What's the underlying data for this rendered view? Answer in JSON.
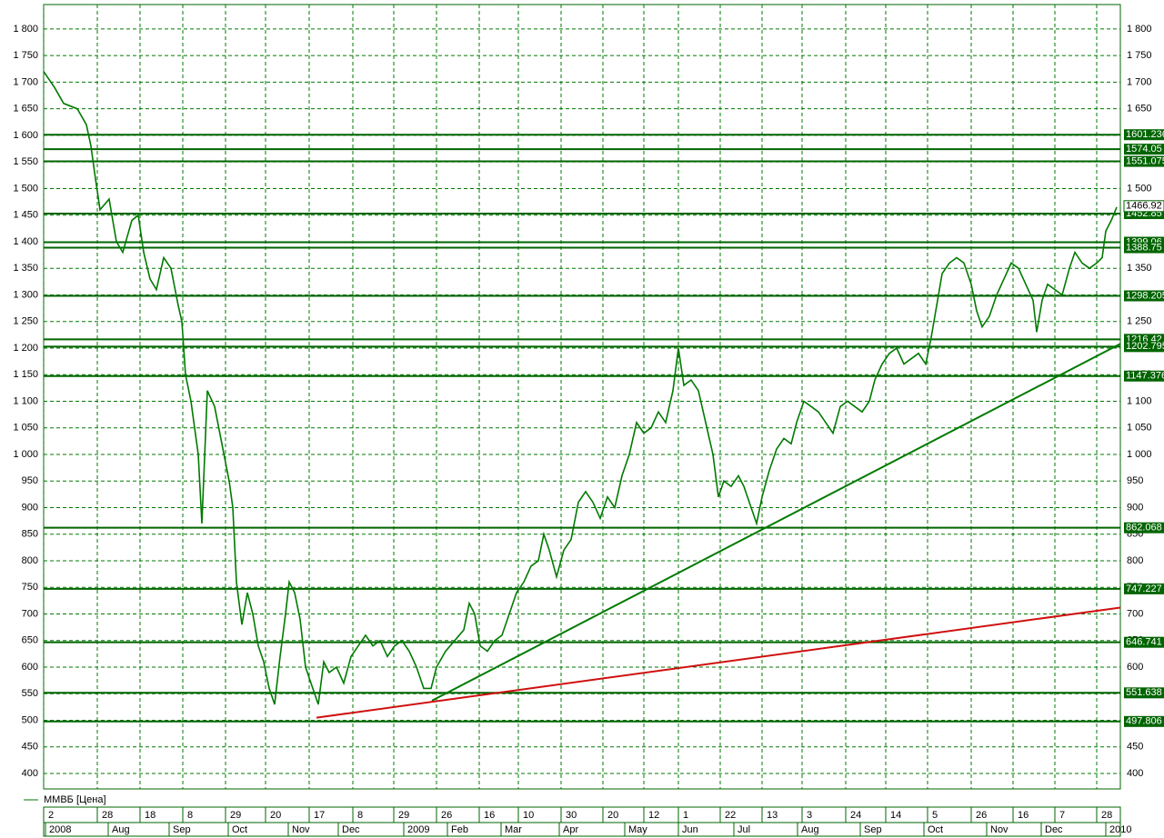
{
  "chart_data": {
    "type": "line",
    "legend": "ММВБ [Цена]",
    "grid": true,
    "xlim": [
      0,
      1184
    ],
    "ylim": [
      371,
      1846
    ],
    "yticks": [
      400,
      450,
      500,
      550,
      600,
      650,
      700,
      750,
      800,
      850,
      900,
      950,
      {
        "value": 1000,
        "label": "1 000"
      },
      {
        "value": 1050,
        "label": "1 050"
      },
      {
        "value": 1100,
        "label": "1 100"
      },
      {
        "value": 1150,
        "label": "1 150"
      },
      {
        "value": 1200,
        "label": "1 200"
      },
      {
        "value": 1250,
        "label": "1 250"
      },
      {
        "value": 1300,
        "label": "1 300"
      },
      {
        "value": 1350,
        "label": "1 350"
      },
      {
        "value": 1400,
        "label": "1 400"
      },
      {
        "value": 1450,
        "label": "1 450"
      },
      {
        "value": 1500,
        "label": "1 500"
      },
      {
        "value": 1550,
        "label": "1 550"
      },
      {
        "value": 1600,
        "label": "1 600"
      },
      {
        "value": 1650,
        "label": "1 650"
      },
      {
        "value": 1700,
        "label": "1 700"
      },
      {
        "value": 1750,
        "label": "1 750"
      },
      {
        "value": 1800,
        "label": "1 800"
      }
    ],
    "xticks": [
      {
        "value": 0,
        "label": "2"
      },
      {
        "value": 59,
        "label": "28"
      },
      {
        "value": 106,
        "label": "18"
      },
      {
        "value": 153,
        "label": "8"
      },
      {
        "value": 200,
        "label": "29"
      },
      {
        "value": 244,
        "label": "20"
      },
      {
        "value": 292,
        "label": "17"
      },
      {
        "value": 340,
        "label": "8"
      },
      {
        "value": 385,
        "label": "29"
      },
      {
        "value": 432,
        "label": "26"
      },
      {
        "value": 479,
        "label": "16"
      },
      {
        "value": 522,
        "label": "10"
      },
      {
        "value": 569,
        "label": "30"
      },
      {
        "value": 615,
        "label": "20"
      },
      {
        "value": 660,
        "label": "12"
      },
      {
        "value": 698,
        "label": "1"
      },
      {
        "value": 744,
        "label": "22"
      },
      {
        "value": 790,
        "label": "13"
      },
      {
        "value": 834,
        "label": "3"
      },
      {
        "value": 882,
        "label": "24"
      },
      {
        "value": 926,
        "label": "14"
      },
      {
        "value": 972,
        "label": "5"
      },
      {
        "value": 1020,
        "label": "26"
      },
      {
        "value": 1066,
        "label": "16"
      },
      {
        "value": 1112,
        "label": "7"
      },
      {
        "value": 1158,
        "label": "28"
      }
    ],
    "months": [
      {
        "value": 0,
        "label": "2008"
      },
      {
        "value": 69,
        "label": "Aug"
      },
      {
        "value": 136,
        "label": "Sep"
      },
      {
        "value": 201,
        "label": "Oct"
      },
      {
        "value": 267,
        "label": "Nov"
      },
      {
        "value": 322,
        "label": "Dec"
      },
      {
        "value": 394,
        "label": "2009"
      },
      {
        "value": 442,
        "label": "Feb"
      },
      {
        "value": 501,
        "label": "Mar"
      },
      {
        "value": 565,
        "label": "Apr"
      },
      {
        "value": 637,
        "label": "May"
      },
      {
        "value": 696,
        "label": "Jun"
      },
      {
        "value": 757,
        "label": "Jul"
      },
      {
        "value": 827,
        "label": "Aug"
      },
      {
        "value": 896,
        "label": "Sep"
      },
      {
        "value": 966,
        "label": "Oct"
      },
      {
        "value": 1035,
        "label": "Nov"
      },
      {
        "value": 1095,
        "label": "Dec"
      },
      {
        "value": 1166,
        "label": "2010"
      }
    ],
    "series": [
      {
        "name": "ММВБ [Цена]",
        "color": "#007a00",
        "x": [
          0,
          12,
          22,
          37,
          47,
          52,
          56,
          62,
          72,
          80,
          87,
          97,
          104,
          110,
          117,
          124,
          132,
          140,
          148,
          152,
          156,
          162,
          170,
          174,
          180,
          188,
          196,
          204,
          208,
          212,
          218,
          224,
          230,
          236,
          242,
          248,
          254,
          260,
          266,
          270,
          276,
          282,
          288,
          294,
          302,
          308,
          314,
          322,
          330,
          338,
          346,
          354,
          362,
          370,
          378,
          386,
          394,
          402,
          410,
          418,
          426,
          432,
          442,
          452,
          462,
          468,
          474,
          480,
          488,
          496,
          504,
          512,
          520,
          528,
          536,
          544,
          550,
          556,
          564,
          572,
          580,
          588,
          596,
          604,
          612,
          620,
          628,
          636,
          644,
          652,
          660,
          668,
          676,
          684,
          692,
          698,
          704,
          712,
          720,
          728,
          736,
          742,
          748,
          756,
          764,
          770,
          778,
          784,
          790,
          798,
          806,
          814,
          822,
          828,
          836,
          844,
          852,
          860,
          868,
          876,
          884,
          892,
          900,
          908,
          914,
          922,
          930,
          938,
          946,
          954,
          962,
          970,
          976,
          982,
          988,
          996,
          1004,
          1012,
          1020,
          1026,
          1032,
          1040,
          1048,
          1056,
          1064,
          1072,
          1080,
          1088,
          1092,
          1098,
          1104,
          1112,
          1120,
          1128,
          1134,
          1142,
          1150,
          1158,
          1164,
          1168,
          1174,
          1180
        ],
        "values": [
          1720,
          1690,
          1660,
          1650,
          1620,
          1580,
          1530,
          1460,
          1480,
          1400,
          1380,
          1440,
          1450,
          1380,
          1330,
          1310,
          1370,
          1350,
          1280,
          1250,
          1150,
          1100,
          1000,
          870,
          1120,
          1090,
          1020,
          950,
          900,
          760,
          680,
          740,
          700,
          640,
          610,
          560,
          530,
          620,
          700,
          760,
          740,
          690,
          600,
          570,
          530,
          610,
          590,
          600,
          570,
          620,
          640,
          660,
          640,
          650,
          620,
          640,
          650,
          630,
          600,
          560,
          560,
          600,
          630,
          650,
          670,
          720,
          700,
          640,
          630,
          650,
          660,
          700,
          740,
          760,
          790,
          800,
          850,
          820,
          770,
          820,
          840,
          910,
          930,
          910,
          880,
          920,
          900,
          960,
          1000,
          1060,
          1040,
          1050,
          1080,
          1060,
          1120,
          1200,
          1130,
          1140,
          1120,
          1060,
          1000,
          920,
          950,
          940,
          960,
          940,
          900,
          870,
          920,
          970,
          1010,
          1030,
          1020,
          1060,
          1100,
          1090,
          1080,
          1060,
          1040,
          1090,
          1100,
          1090,
          1080,
          1100,
          1140,
          1170,
          1190,
          1200,
          1170,
          1180,
          1190,
          1170,
          1220,
          1280,
          1340,
          1360,
          1370,
          1360,
          1320,
          1270,
          1240,
          1260,
          1300,
          1330,
          1360,
          1350,
          1320,
          1290,
          1230,
          1290,
          1320,
          1310,
          1300,
          1350,
          1380,
          1360,
          1350,
          1360,
          1370,
          1420,
          1440,
          1465
        ]
      }
    ],
    "price_label": 1466.92,
    "levels": [
      1601.236,
      1574.05,
      1551.075,
      1452.85,
      1399.06,
      1388.75,
      1298.205,
      1216.42,
      1202.795,
      1147.376,
      862.068,
      747.227,
      646.741,
      551.638,
      497.806
    ],
    "level_color": "#006400",
    "trendlines": [
      {
        "color": "#007a00",
        "x": [
          427,
          1184
        ],
        "values": [
          537,
          1208
        ]
      },
      {
        "color": "#d01010",
        "x": [
          300,
          1184
        ],
        "values": [
          505,
          712
        ]
      }
    ]
  }
}
